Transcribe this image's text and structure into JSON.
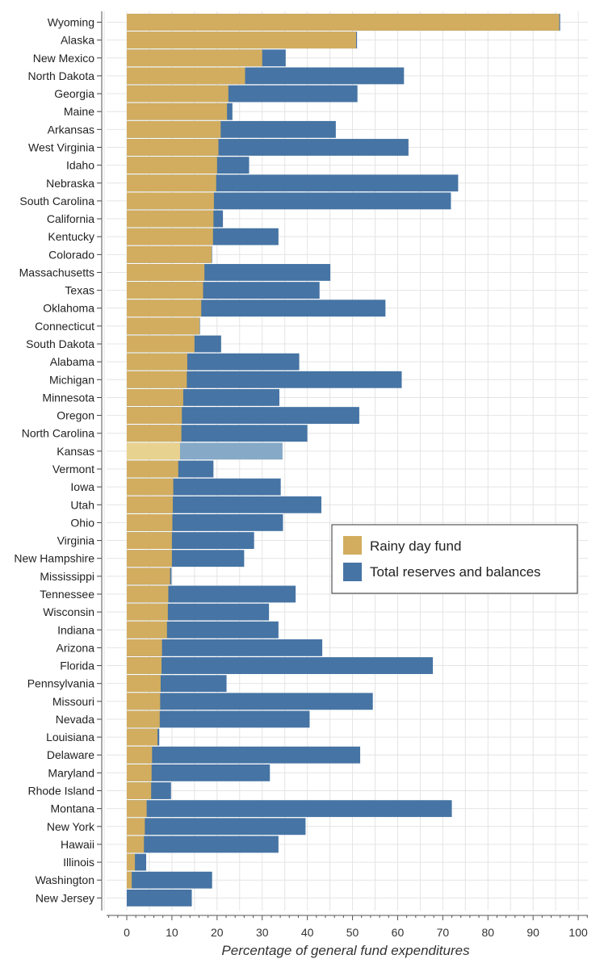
{
  "chart_data": {
    "type": "bar",
    "orientation": "horizontal",
    "stacking": "overlay",
    "xlabel": "Percentage of general fund expenditures",
    "ylabel": "",
    "xlim": [
      0,
      100
    ],
    "xticks": [
      0,
      10,
      20,
      30,
      40,
      50,
      60,
      70,
      80,
      90,
      100
    ],
    "grid": true,
    "legend_position": "right-middle",
    "highlight_category": "Kansas",
    "colors": {
      "rainy": "#d2ad5f",
      "total": "#4674a4",
      "rainy_highlight": "#e8d28f",
      "total_highlight": "#86a9c7"
    },
    "categories": [
      "Wyoming",
      "Alaska",
      "New Mexico",
      "North Dakota",
      "Georgia",
      "Maine",
      "Arkansas",
      "West Virginia",
      "Idaho",
      "Nebraska",
      "South Carolina",
      "California",
      "Kentucky",
      "Colorado",
      "Massachusetts",
      "Texas",
      "Oklahoma",
      "Connecticut",
      "South Dakota",
      "Alabama",
      "Michigan",
      "Minnesota",
      "Oregon",
      "North Carolina",
      "Kansas",
      "Vermont",
      "Iowa",
      "Utah",
      "Ohio",
      "Virginia",
      "New Hampshire",
      "Mississippi",
      "Tennessee",
      "Wisconsin",
      "Indiana",
      "Arizona",
      "Florida",
      "Pennsylvania",
      "Missouri",
      "Nevada",
      "Louisiana",
      "Delaware",
      "Maryland",
      "Rhode Island",
      "Montana",
      "New York",
      "Hawaii",
      "Illinois",
      "Washington",
      "New Jersey"
    ],
    "series": [
      {
        "name": "Rainy day fund",
        "values": [
          95.8,
          50.8,
          30.0,
          26.2,
          22.5,
          22.2,
          20.8,
          20.3,
          20.0,
          19.8,
          19.3,
          19.2,
          19.1,
          18.8,
          17.2,
          16.9,
          16.5,
          16.1,
          15.0,
          13.4,
          13.3,
          12.5,
          12.2,
          12.1,
          11.8,
          11.4,
          10.3,
          10.2,
          10.1,
          10.0,
          10.0,
          9.6,
          9.2,
          9.1,
          8.9,
          7.8,
          7.7,
          7.5,
          7.4,
          7.3,
          6.8,
          5.6,
          5.5,
          5.4,
          4.4,
          4.0,
          3.8,
          1.8,
          1.1,
          0.0
        ]
      },
      {
        "name": "Total reserves and balances",
        "values": [
          96.0,
          51.0,
          35.2,
          61.4,
          51.1,
          23.4,
          46.3,
          62.4,
          27.1,
          73.4,
          71.8,
          21.3,
          33.6,
          18.9,
          45.1,
          42.7,
          57.3,
          16.2,
          20.9,
          38.2,
          60.9,
          33.8,
          51.5,
          40.0,
          34.5,
          19.2,
          34.1,
          43.1,
          34.6,
          28.2,
          26.0,
          9.9,
          37.4,
          31.5,
          33.6,
          43.3,
          67.8,
          22.1,
          54.5,
          40.5,
          7.2,
          51.7,
          31.7,
          9.8,
          72.0,
          39.6,
          33.6,
          4.3,
          18.9,
          14.4
        ]
      }
    ]
  }
}
